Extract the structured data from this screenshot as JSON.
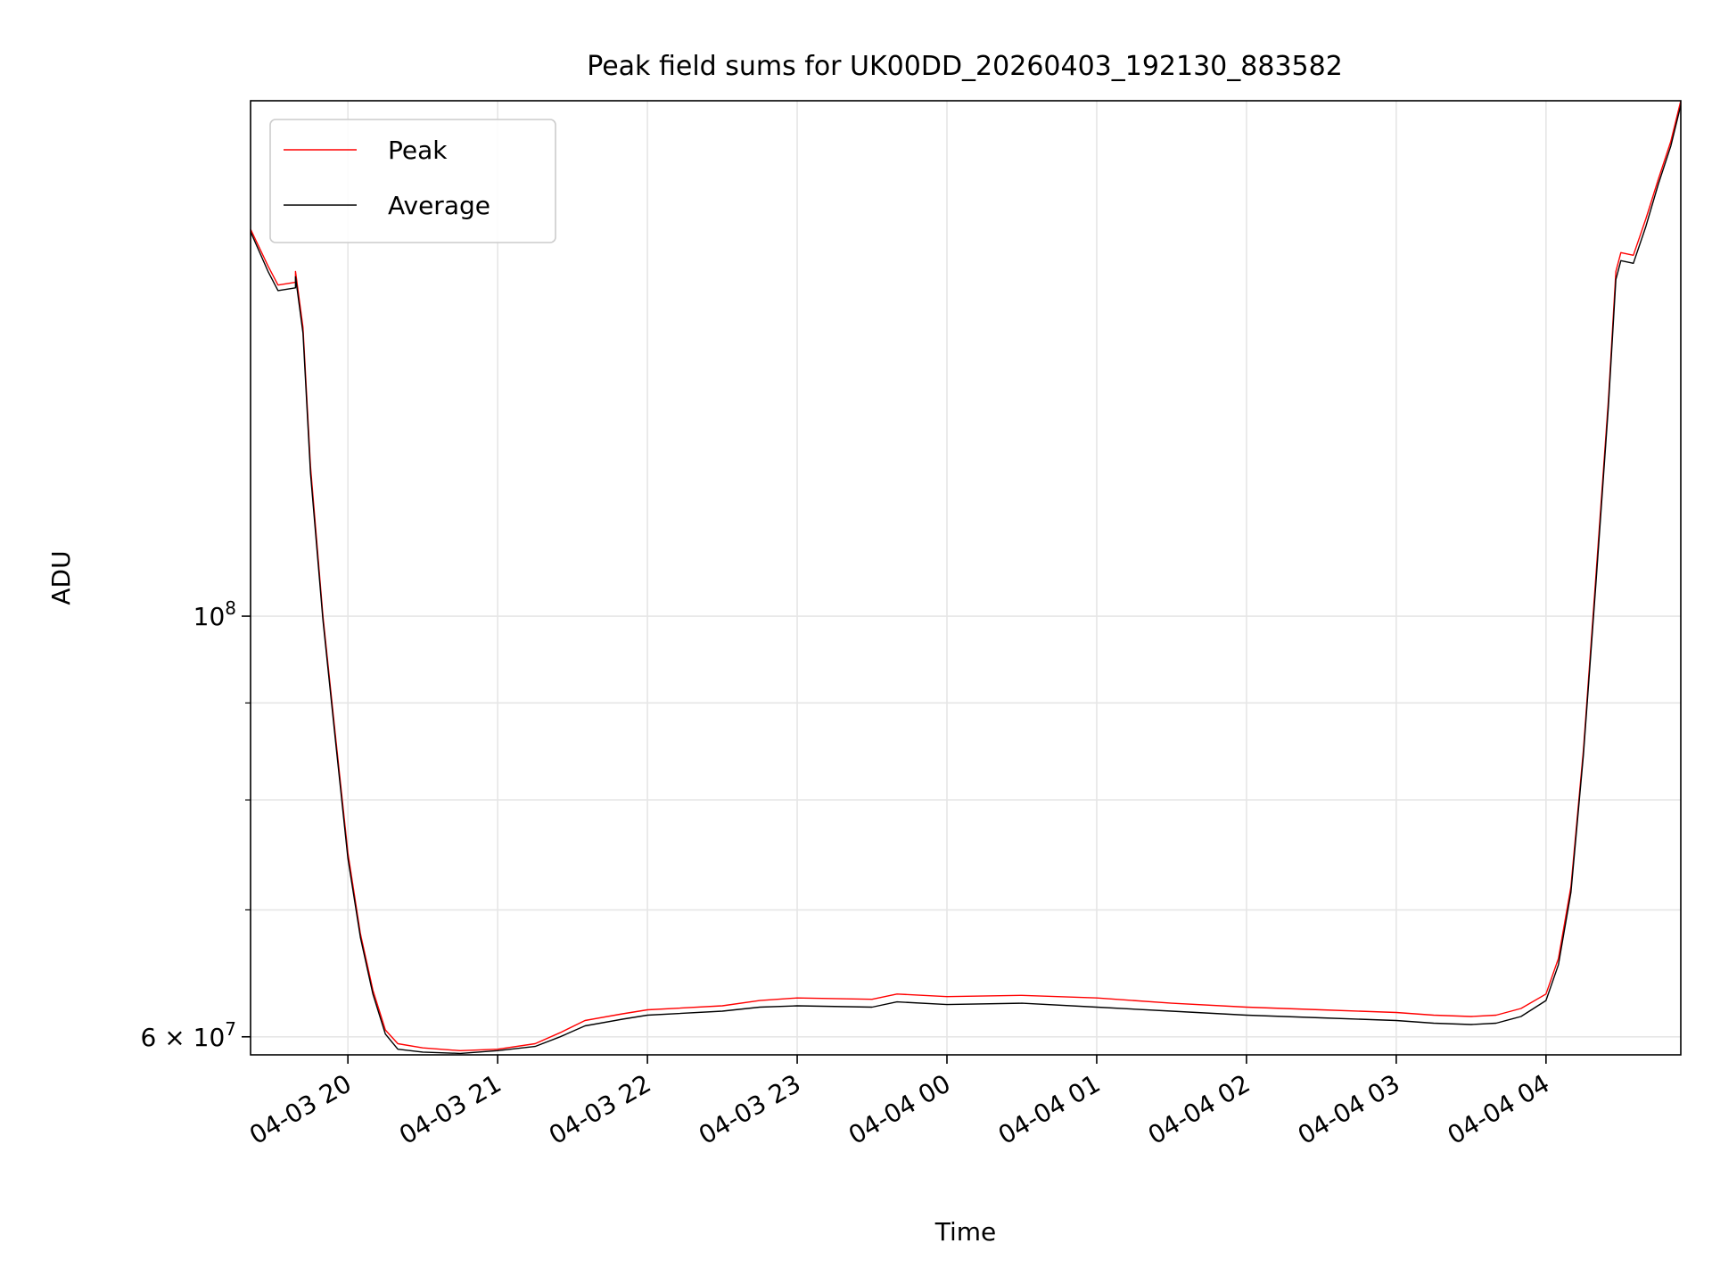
{
  "chart_data": {
    "type": "line",
    "title": "Peak field sums for UK00DD_20260403_192130_883582",
    "xlabel": "Time",
    "ylabel": "ADU",
    "yscale": "log",
    "grid": true,
    "legend_position": "top-left",
    "x_range": [
      "2026-04-03 19:21",
      "2026-04-04 04:54"
    ],
    "ylim": [
      58700000,
      187000000
    ],
    "x_ticks": [
      {
        "t": "2026-04-03 20:00",
        "label": "04-03 20"
      },
      {
        "t": "2026-04-03 21:00",
        "label": "04-03 21"
      },
      {
        "t": "2026-04-03 22:00",
        "label": "04-03 22"
      },
      {
        "t": "2026-04-03 23:00",
        "label": "04-03 23"
      },
      {
        "t": "2026-04-04 00:00",
        "label": "04-04 00"
      },
      {
        "t": "2026-04-04 01:00",
        "label": "04-04 01"
      },
      {
        "t": "2026-04-04 02:00",
        "label": "04-04 02"
      },
      {
        "t": "2026-04-04 03:00",
        "label": "04-04 03"
      },
      {
        "t": "2026-04-04 04:00",
        "label": "04-04 04"
      }
    ],
    "y_major_ticks": [
      {
        "v": 60000000,
        "mantissa": "6",
        "exp": "7"
      },
      {
        "v": 100000000,
        "mantissa": "",
        "exp": "8"
      }
    ],
    "y_minor_ticks": [
      70000000,
      80000000,
      90000000,
      200000000
    ],
    "series": [
      {
        "name": "Peak",
        "color": "#ff0000",
        "x": [
          "2026-04-03 19:21",
          "2026-04-03 19:28",
          "2026-04-03 19:32",
          "2026-04-03 19:39",
          "2026-04-03 19:39",
          "2026-04-03 19:42",
          "2026-04-03 19:45",
          "2026-04-03 19:50",
          "2026-04-03 19:55",
          "2026-04-03 20:00",
          "2026-04-03 20:05",
          "2026-04-03 20:10",
          "2026-04-03 20:15",
          "2026-04-03 20:20",
          "2026-04-03 20:30",
          "2026-04-03 20:45",
          "2026-04-03 21:00",
          "2026-04-03 21:15",
          "2026-04-03 21:25",
          "2026-04-03 21:35",
          "2026-04-03 21:50",
          "2026-04-03 22:00",
          "2026-04-03 22:30",
          "2026-04-03 22:45",
          "2026-04-03 23:00",
          "2026-04-03 23:30",
          "2026-04-03 23:40",
          "2026-04-04 00:00",
          "2026-04-04 00:30",
          "2026-04-04 01:00",
          "2026-04-04 01:30",
          "2026-04-04 02:00",
          "2026-04-04 02:30",
          "2026-04-04 03:00",
          "2026-04-04 03:15",
          "2026-04-04 03:30",
          "2026-04-04 03:40",
          "2026-04-04 03:50",
          "2026-04-04 04:00",
          "2026-04-04 04:05",
          "2026-04-04 04:10",
          "2026-04-04 04:15",
          "2026-04-04 04:20",
          "2026-04-04 04:25",
          "2026-04-04 04:28",
          "2026-04-04 04:30",
          "2026-04-04 04:35",
          "2026-04-04 04:40",
          "2026-04-04 04:45",
          "2026-04-04 04:50",
          "2026-04-04 04:54"
        ],
        "y": [
          160000000,
          153000000,
          149500000,
          150000000,
          152000000,
          142000000,
          120000000,
          100000000,
          86500000,
          75000000,
          68000000,
          63500000,
          60500000,
          59500000,
          59200000,
          59000000,
          59100000,
          59500000,
          60300000,
          61200000,
          61700000,
          62000000,
          62300000,
          62700000,
          62900000,
          62800000,
          63200000,
          63000000,
          63100000,
          62900000,
          62500000,
          62200000,
          62000000,
          61800000,
          61600000,
          61500000,
          61600000,
          62100000,
          63200000,
          66000000,
          72000000,
          85000000,
          105000000,
          130000000,
          152000000,
          155500000,
          155000000,
          162000000,
          170000000,
          178000000,
          187000000
        ]
      },
      {
        "name": "Average",
        "color": "#000000",
        "x": [
          "2026-04-03 19:21",
          "2026-04-03 19:28",
          "2026-04-03 19:32",
          "2026-04-03 19:39",
          "2026-04-03 19:39",
          "2026-04-03 19:42",
          "2026-04-03 19:45",
          "2026-04-03 19:50",
          "2026-04-03 19:55",
          "2026-04-03 20:00",
          "2026-04-03 20:05",
          "2026-04-03 20:10",
          "2026-04-03 20:15",
          "2026-04-03 20:20",
          "2026-04-03 20:30",
          "2026-04-03 20:45",
          "2026-04-03 21:00",
          "2026-04-03 21:15",
          "2026-04-03 21:25",
          "2026-04-03 21:35",
          "2026-04-03 21:50",
          "2026-04-03 22:00",
          "2026-04-03 22:30",
          "2026-04-03 22:45",
          "2026-04-03 23:00",
          "2026-04-03 23:30",
          "2026-04-03 23:40",
          "2026-04-04 00:00",
          "2026-04-04 00:30",
          "2026-04-04 01:00",
          "2026-04-04 01:30",
          "2026-04-04 02:00",
          "2026-04-04 02:30",
          "2026-04-04 03:00",
          "2026-04-04 03:15",
          "2026-04-04 03:30",
          "2026-04-04 03:40",
          "2026-04-04 03:50",
          "2026-04-04 04:00",
          "2026-04-04 04:05",
          "2026-04-04 04:10",
          "2026-04-04 04:15",
          "2026-04-04 04:20",
          "2026-04-04 04:25",
          "2026-04-04 04:28",
          "2026-04-04 04:30",
          "2026-04-04 04:35",
          "2026-04-04 04:40",
          "2026-04-04 04:45",
          "2026-04-04 04:50",
          "2026-04-04 04:54"
        ],
        "y": [
          159500000,
          152000000,
          148500000,
          149000000,
          151000000,
          141000000,
          119000000,
          99500000,
          86000000,
          74500000,
          67700000,
          63200000,
          60200000,
          59100000,
          58900000,
          58800000,
          59000000,
          59300000,
          60000000,
          60800000,
          61300000,
          61600000,
          61900000,
          62200000,
          62300000,
          62200000,
          62600000,
          62400000,
          62500000,
          62200000,
          61900000,
          61600000,
          61400000,
          61200000,
          61000000,
          60900000,
          61000000,
          61500000,
          62700000,
          65500000,
          71500000,
          84500000,
          104000000,
          129000000,
          150500000,
          154000000,
          153500000,
          160500000,
          169000000,
          177000000,
          186000000
        ]
      }
    ]
  }
}
